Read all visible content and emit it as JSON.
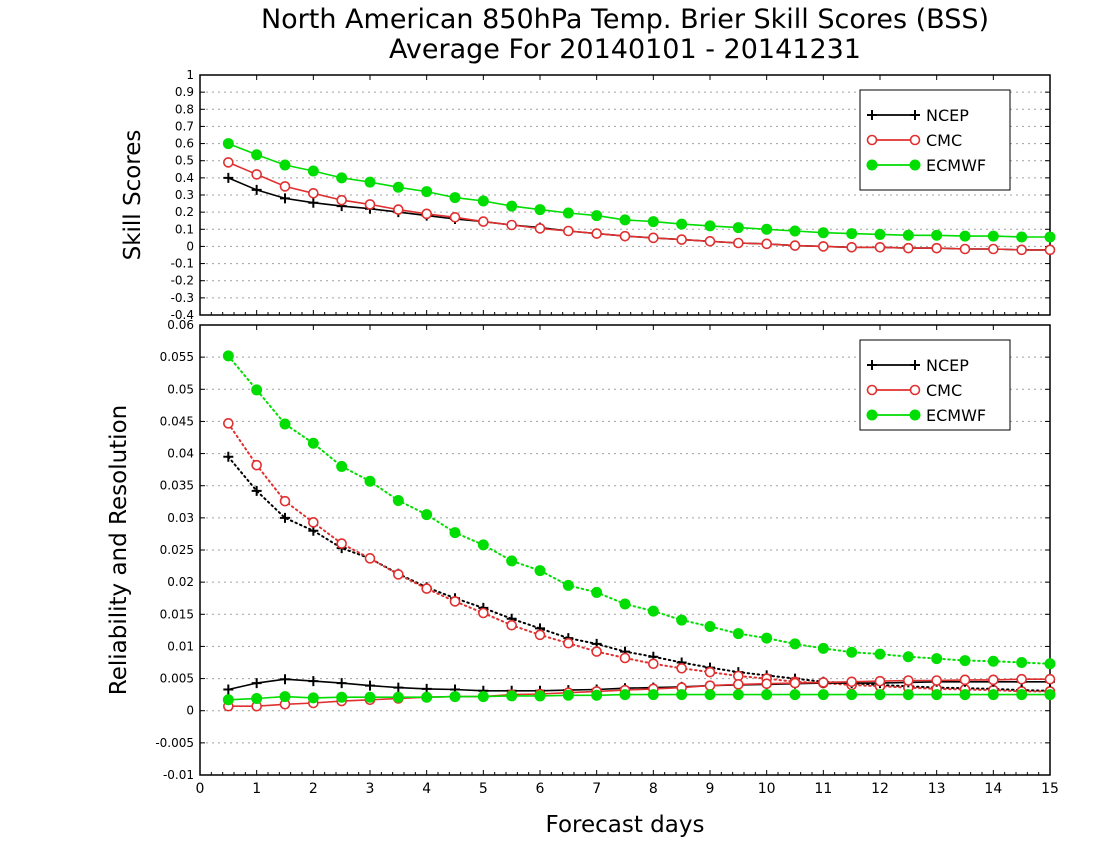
{
  "title_line1": "North American 850hPa Temp. Brier Skill Scores (BSS)",
  "title_line2": "Average For 20140101 - 20141231",
  "xlabel": "Forecast days",
  "colors": {
    "NCEP": "#000000",
    "CMC": "#e03030",
    "ECMWF": "#00dd00",
    "grid": "#a0a0a0"
  },
  "chart_data": [
    {
      "type": "line",
      "ylabel": "Skill Scores",
      "xlim": [
        0,
        15
      ],
      "ylim": [
        -0.4,
        1
      ],
      "x_ticks": [
        "0",
        "1",
        "2",
        "3",
        "4",
        "5",
        "6",
        "7",
        "8",
        "9",
        "10",
        "11",
        "12",
        "13",
        "14",
        "15"
      ],
      "y_ticks": [
        "-0.4",
        "-0.3",
        "-0.2",
        "-0.1",
        "0",
        "0.1",
        "0.2",
        "0.3",
        "0.4",
        "0.5",
        "0.6",
        "0.7",
        "0.8",
        "0.9",
        "1"
      ],
      "legend_position": "top-right",
      "x": [
        0.5,
        1,
        1.5,
        2,
        2.5,
        3,
        3.5,
        4,
        4.5,
        5,
        5.5,
        6,
        6.5,
        7,
        7.5,
        8,
        8.5,
        9,
        9.5,
        10,
        10.5,
        11,
        11.5,
        12,
        12.5,
        13,
        13.5,
        14,
        14.5,
        15
      ],
      "series": [
        {
          "name": "NCEP",
          "marker": "plus",
          "style": "solid",
          "values": [
            0.4,
            0.33,
            0.28,
            0.255,
            0.235,
            0.22,
            0.2,
            0.18,
            0.16,
            0.145,
            0.125,
            0.11,
            0.09,
            0.075,
            0.06,
            0.05,
            0.04,
            0.03,
            0.02,
            0.015,
            0.005,
            0.0,
            -0.005,
            -0.005,
            -0.01,
            -0.01,
            -0.015,
            -0.015,
            -0.02,
            -0.02
          ]
        },
        {
          "name": "CMC",
          "marker": "open-circle",
          "style": "solid",
          "values": [
            0.49,
            0.42,
            0.35,
            0.31,
            0.27,
            0.245,
            0.215,
            0.19,
            0.17,
            0.145,
            0.125,
            0.105,
            0.09,
            0.075,
            0.06,
            0.05,
            0.04,
            0.03,
            0.02,
            0.015,
            0.005,
            0.0,
            -0.005,
            -0.005,
            -0.01,
            -0.01,
            -0.015,
            -0.015,
            -0.02,
            -0.02
          ]
        },
        {
          "name": "ECMWF",
          "marker": "filled-circle",
          "style": "solid",
          "values": [
            0.6,
            0.535,
            0.475,
            0.44,
            0.4,
            0.375,
            0.345,
            0.32,
            0.285,
            0.265,
            0.235,
            0.215,
            0.195,
            0.18,
            0.155,
            0.145,
            0.13,
            0.12,
            0.11,
            0.1,
            0.09,
            0.08,
            0.075,
            0.07,
            0.065,
            0.065,
            0.06,
            0.06,
            0.055,
            0.055
          ]
        }
      ]
    },
    {
      "type": "line",
      "ylabel": "Reliability and Resolution",
      "xlim": [
        0,
        15
      ],
      "ylim": [
        -0.01,
        0.06
      ],
      "x_ticks": [
        "0",
        "1",
        "2",
        "3",
        "4",
        "5",
        "6",
        "7",
        "8",
        "9",
        "10",
        "11",
        "12",
        "13",
        "14",
        "15"
      ],
      "y_ticks": [
        "-0.01",
        "-0.005",
        "0",
        "0.005",
        "0.01",
        "0.015",
        "0.02",
        "0.025",
        "0.03",
        "0.035",
        "0.04",
        "0.045",
        "0.05",
        "0.055",
        "0.06"
      ],
      "legend_position": "top-right",
      "x": [
        0.5,
        1,
        1.5,
        2,
        2.5,
        3,
        3.5,
        4,
        4.5,
        5,
        5.5,
        6,
        6.5,
        7,
        7.5,
        8,
        8.5,
        9,
        9.5,
        10,
        10.5,
        11,
        11.5,
        12,
        12.5,
        13,
        13.5,
        14,
        14.5,
        15
      ],
      "series": [
        {
          "name": "NCEP",
          "marker": "plus",
          "style": "dotted",
          "values": [
            0.0395,
            0.0342,
            0.03,
            0.028,
            0.0253,
            0.0237,
            0.0213,
            0.0192,
            0.0175,
            0.016,
            0.0143,
            0.0128,
            0.0113,
            0.0104,
            0.0092,
            0.0084,
            0.0075,
            0.0067,
            0.006,
            0.0055,
            0.005,
            0.0045,
            0.0043,
            0.004,
            0.0038,
            0.0036,
            0.0035,
            0.0034,
            0.0032,
            0.0031
          ]
        },
        {
          "name": "CMC",
          "marker": "open-circle",
          "style": "dotted",
          "values": [
            0.0447,
            0.0382,
            0.0326,
            0.0293,
            0.026,
            0.0237,
            0.0212,
            0.019,
            0.017,
            0.0152,
            0.0133,
            0.0118,
            0.0105,
            0.0092,
            0.0082,
            0.0073,
            0.0066,
            0.006,
            0.0054,
            0.005,
            0.0045,
            0.0043,
            0.004,
            0.0038,
            0.0036,
            0.0034,
            0.0033,
            0.0032,
            0.003,
            0.003
          ]
        },
        {
          "name": "ECMWF",
          "marker": "filled-circle",
          "style": "dotted",
          "values": [
            0.0552,
            0.0499,
            0.0446,
            0.0416,
            0.038,
            0.0357,
            0.0327,
            0.0305,
            0.0277,
            0.0258,
            0.0233,
            0.0218,
            0.0195,
            0.0184,
            0.0166,
            0.0155,
            0.0141,
            0.0131,
            0.012,
            0.0113,
            0.0104,
            0.0097,
            0.0091,
            0.0088,
            0.0084,
            0.0081,
            0.0078,
            0.0077,
            0.0075,
            0.0073
          ]
        },
        {
          "name": "NCEP",
          "marker": "plus",
          "style": "solid",
          "values": [
            0.0033,
            0.0043,
            0.0049,
            0.0046,
            0.0043,
            0.0039,
            0.0036,
            0.0034,
            0.0033,
            0.0031,
            0.0031,
            0.0031,
            0.0032,
            0.0033,
            0.0035,
            0.0036,
            0.0037,
            0.0039,
            0.004,
            0.0041,
            0.0042,
            0.0043,
            0.0043,
            0.0043,
            0.0044,
            0.0045,
            0.0045,
            0.0045,
            0.0045,
            0.0045
          ]
        },
        {
          "name": "CMC",
          "marker": "open-circle",
          "style": "solid",
          "values": [
            0.0007,
            0.0007,
            0.001,
            0.0012,
            0.0015,
            0.0017,
            0.0019,
            0.0021,
            0.0022,
            0.0022,
            0.0025,
            0.0026,
            0.0028,
            0.003,
            0.0032,
            0.0034,
            0.0036,
            0.0039,
            0.0041,
            0.0042,
            0.0043,
            0.0044,
            0.0045,
            0.0046,
            0.0047,
            0.0047,
            0.0048,
            0.0048,
            0.0049,
            0.0049
          ]
        },
        {
          "name": "ECMWF",
          "marker": "filled-circle",
          "style": "solid",
          "values": [
            0.0017,
            0.0019,
            0.0022,
            0.002,
            0.0021,
            0.0021,
            0.0021,
            0.0021,
            0.0022,
            0.0022,
            0.0023,
            0.0023,
            0.0024,
            0.0024,
            0.0025,
            0.0025,
            0.0025,
            0.0025,
            0.0025,
            0.0025,
            0.0025,
            0.0025,
            0.0025,
            0.0025,
            0.0025,
            0.0025,
            0.0025,
            0.0025,
            0.0025,
            0.0025
          ]
        }
      ]
    }
  ]
}
